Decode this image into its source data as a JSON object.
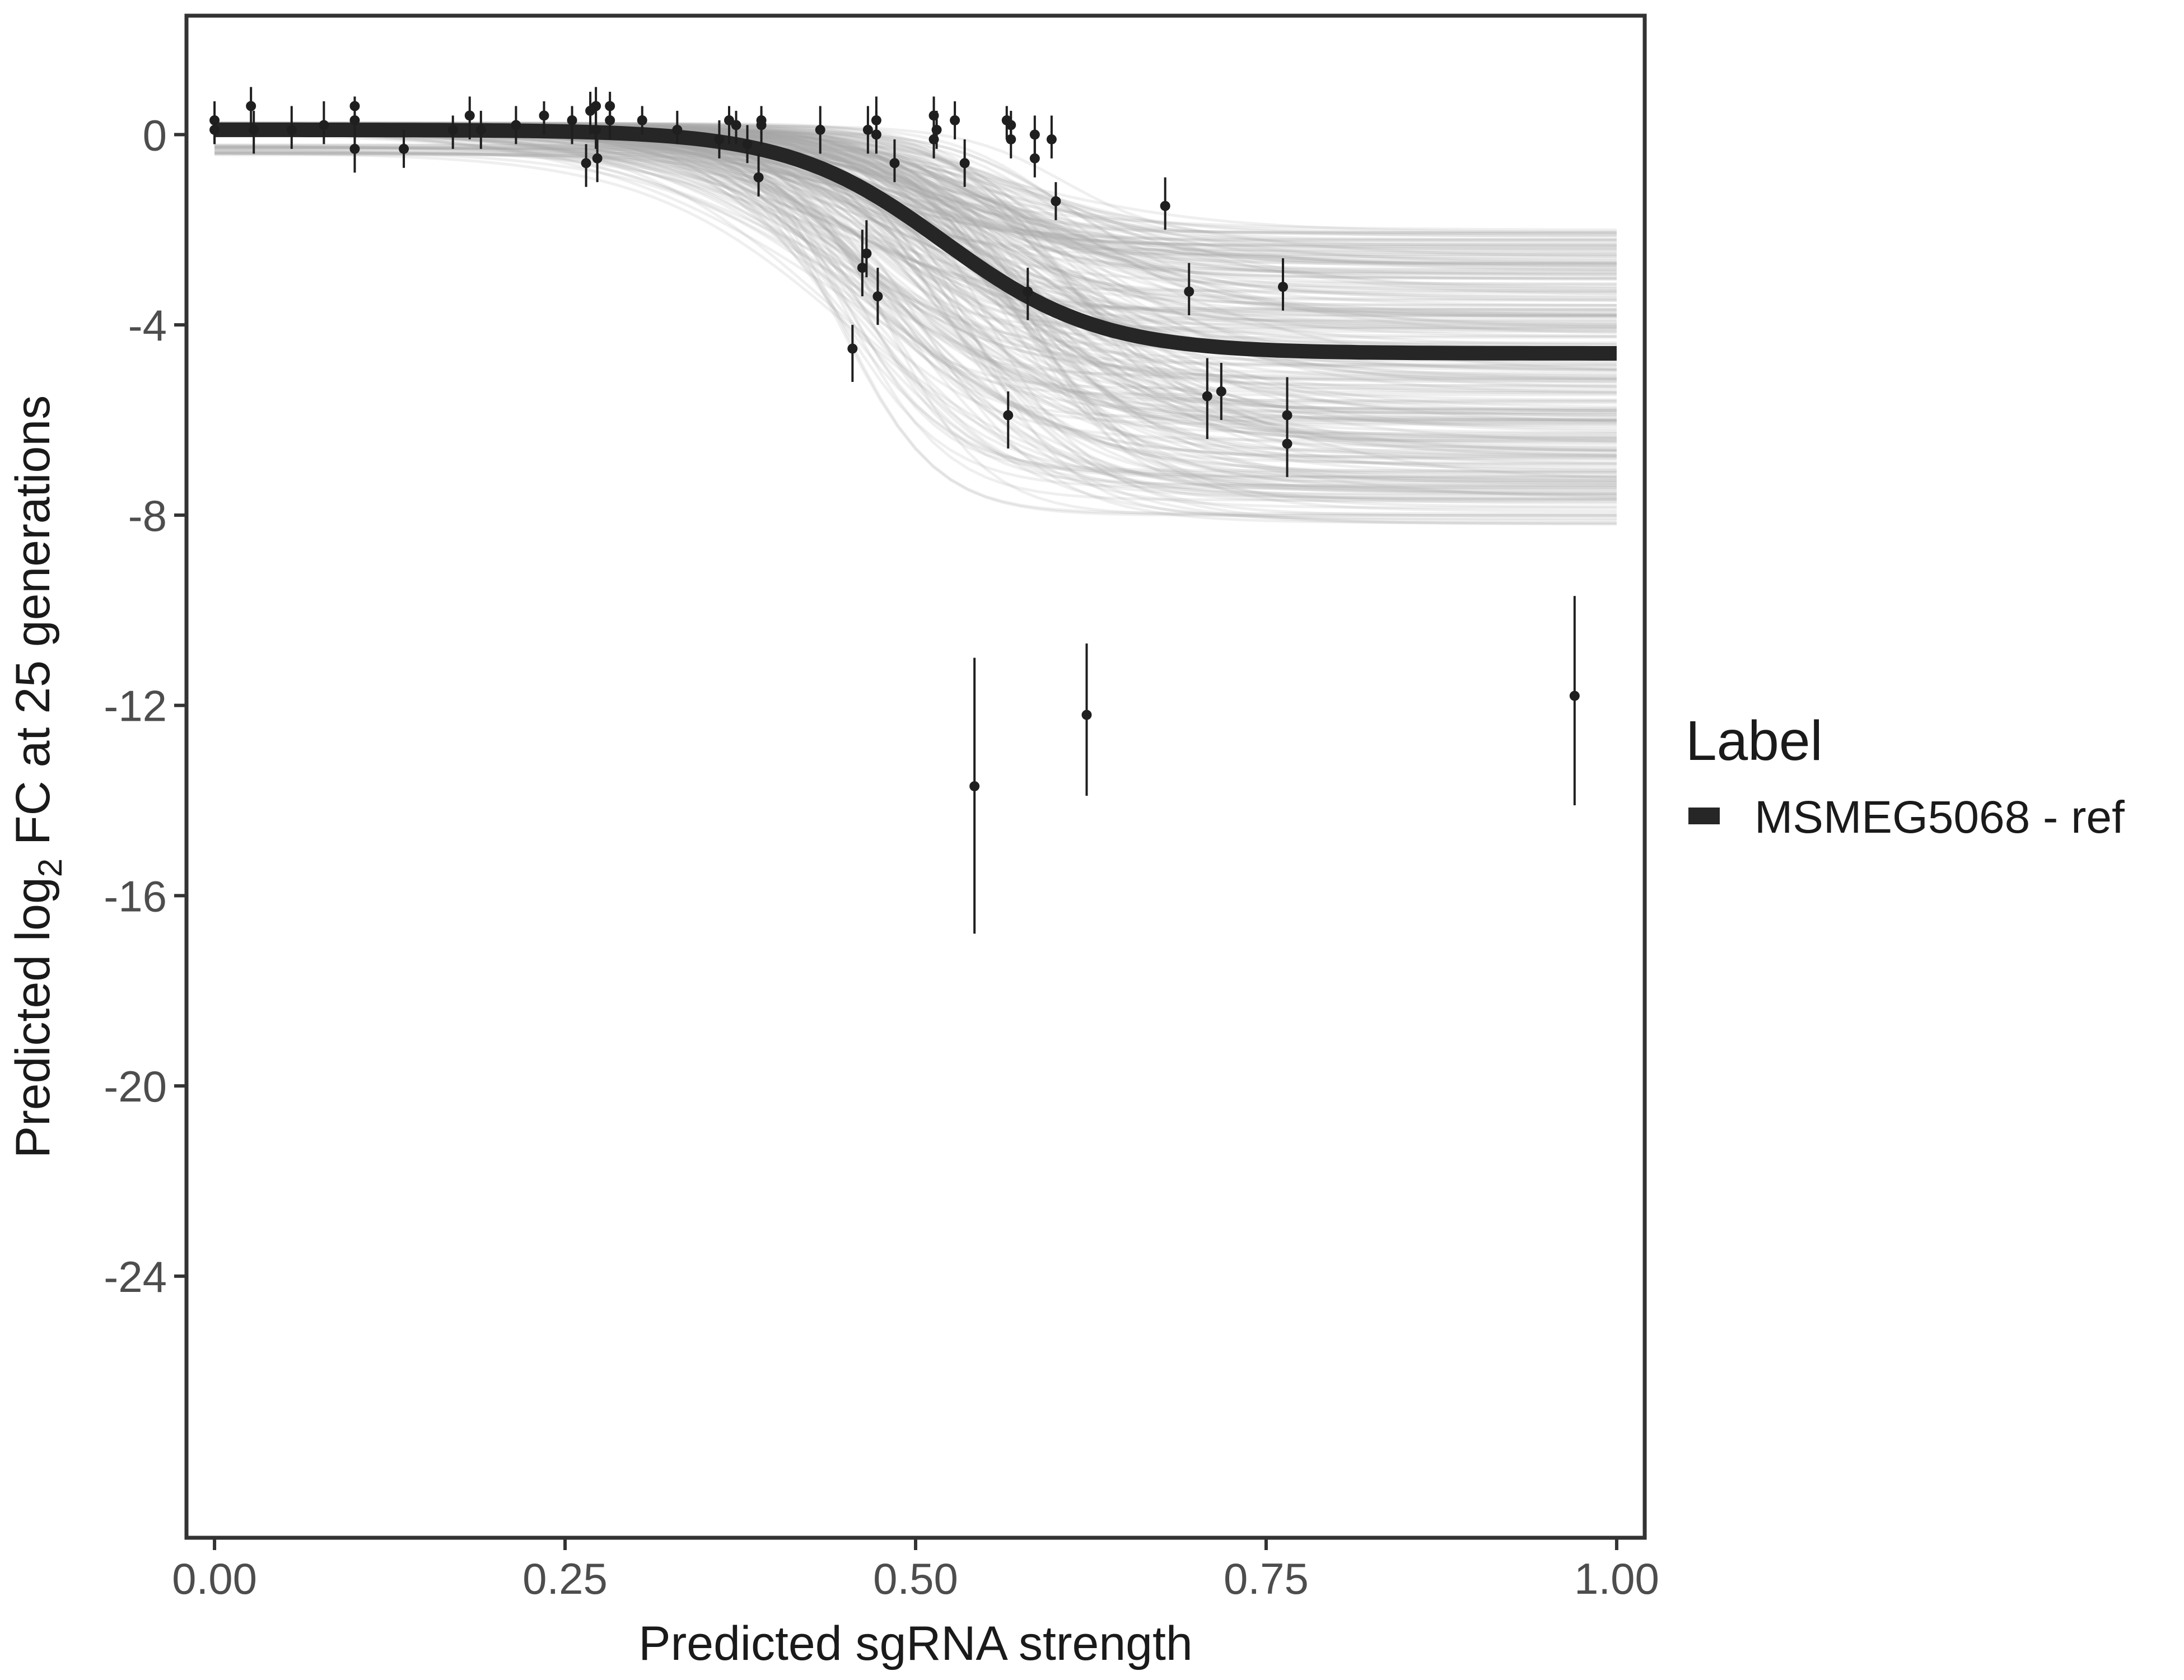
{
  "chart_data": {
    "type": "scatter",
    "xlabel": "Predicted sgRNA strength",
    "ylabel_parts": {
      "prefix": "Predicted  log",
      "subscript": "2",
      "suffix": " FC at 25 generations"
    },
    "xlim": [
      -0.02,
      1.02
    ],
    "ylim": [
      -29.5,
      2.5
    ],
    "x_ticks": [
      0.0,
      0.25,
      0.5,
      0.75,
      1.0
    ],
    "x_tick_labels": [
      "0.00",
      "0.25",
      "0.50",
      "0.75",
      "1.00"
    ],
    "y_ticks": [
      0,
      -4,
      -8,
      -12,
      -16,
      -20,
      -24
    ],
    "y_tick_labels": [
      "0",
      "-4",
      "-8",
      "-12",
      "-16",
      "-20",
      "-24"
    ],
    "legend": {
      "title": "Label",
      "entries": [
        {
          "label": "MSMEG5068 - ref",
          "color": "#262626"
        }
      ]
    },
    "fit_curve": {
      "model": "logistic",
      "low": -4.6,
      "high": 0.1,
      "midpoint": 0.52,
      "slope": 18
    },
    "posterior_band": {
      "color": "#a9a9a9",
      "low_range": [
        -8.2,
        -2.0
      ],
      "midpoint_range": [
        0.44,
        0.62
      ]
    },
    "series": [
      {
        "name": "MSMEG5068 - ref",
        "points": [
          {
            "x": 0.0,
            "y": 0.3,
            "lo": -0.2,
            "hi": 0.7
          },
          {
            "x": 0.0,
            "y": 0.1,
            "lo": -0.2,
            "hi": 0.4
          },
          {
            "x": 0.026,
            "y": 0.6,
            "lo": 0.1,
            "hi": 1.0
          },
          {
            "x": 0.028,
            "y": 0.1,
            "lo": -0.4,
            "hi": 0.5
          },
          {
            "x": 0.055,
            "y": 0.1,
            "lo": -0.3,
            "hi": 0.6
          },
          {
            "x": 0.078,
            "y": 0.2,
            "lo": -0.2,
            "hi": 0.7
          },
          {
            "x": 0.1,
            "y": -0.3,
            "lo": -0.8,
            "hi": 0.2
          },
          {
            "x": 0.1,
            "y": 0.6,
            "lo": 0.2,
            "hi": 0.8
          },
          {
            "x": 0.1,
            "y": 0.3,
            "lo": -0.1,
            "hi": 0.6
          },
          {
            "x": 0.135,
            "y": -0.3,
            "lo": -0.7,
            "hi": 0.1
          },
          {
            "x": 0.17,
            "y": 0.1,
            "lo": -0.3,
            "hi": 0.4
          },
          {
            "x": 0.182,
            "y": 0.4,
            "lo": -0.1,
            "hi": 0.8
          },
          {
            "x": 0.19,
            "y": 0.1,
            "lo": -0.3,
            "hi": 0.5
          },
          {
            "x": 0.215,
            "y": 0.2,
            "lo": -0.2,
            "hi": 0.6
          },
          {
            "x": 0.235,
            "y": 0.4,
            "lo": 0.0,
            "hi": 0.7
          },
          {
            "x": 0.255,
            "y": 0.3,
            "lo": -0.2,
            "hi": 0.6
          },
          {
            "x": 0.265,
            "y": -0.6,
            "lo": -1.1,
            "hi": -0.2
          },
          {
            "x": 0.268,
            "y": 0.5,
            "lo": 0.0,
            "hi": 0.9
          },
          {
            "x": 0.272,
            "y": 0.6,
            "lo": 0.2,
            "hi": 1.0
          },
          {
            "x": 0.272,
            "y": 0.1,
            "lo": -0.3,
            "hi": 0.5
          },
          {
            "x": 0.273,
            "y": -0.5,
            "lo": -1.0,
            "hi": -0.1
          },
          {
            "x": 0.282,
            "y": 0.6,
            "lo": 0.3,
            "hi": 0.9
          },
          {
            "x": 0.282,
            "y": 0.3,
            "lo": -0.1,
            "hi": 0.6
          },
          {
            "x": 0.305,
            "y": 0.3,
            "lo": 0.0,
            "hi": 0.6
          },
          {
            "x": 0.33,
            "y": 0.1,
            "lo": -0.2,
            "hi": 0.5
          },
          {
            "x": 0.36,
            "y": -0.1,
            "lo": -0.5,
            "hi": 0.3
          },
          {
            "x": 0.367,
            "y": 0.3,
            "lo": -0.2,
            "hi": 0.6
          },
          {
            "x": 0.372,
            "y": 0.2,
            "lo": -0.2,
            "hi": 0.5
          },
          {
            "x": 0.38,
            "y": -0.2,
            "lo": -0.6,
            "hi": 0.2
          },
          {
            "x": 0.388,
            "y": -0.9,
            "lo": -1.3,
            "hi": -0.4
          },
          {
            "x": 0.39,
            "y": 0.3,
            "lo": 0.0,
            "hi": 0.6
          },
          {
            "x": 0.39,
            "y": 0.2,
            "lo": -0.2,
            "hi": 0.5
          },
          {
            "x": 0.432,
            "y": 0.1,
            "lo": -0.4,
            "hi": 0.6
          },
          {
            "x": 0.455,
            "y": -4.5,
            "lo": -5.2,
            "hi": -4.0
          },
          {
            "x": 0.462,
            "y": -2.8,
            "lo": -3.4,
            "hi": -2.0
          },
          {
            "x": 0.465,
            "y": -2.5,
            "lo": -3.0,
            "hi": -1.8
          },
          {
            "x": 0.466,
            "y": 0.1,
            "lo": -0.4,
            "hi": 0.6
          },
          {
            "x": 0.472,
            "y": 0.3,
            "lo": -0.1,
            "hi": 0.8
          },
          {
            "x": 0.472,
            "y": 0.0,
            "lo": -0.4,
            "hi": 0.5
          },
          {
            "x": 0.473,
            "y": -3.4,
            "lo": -4.0,
            "hi": -2.8
          },
          {
            "x": 0.485,
            "y": -0.6,
            "lo": -1.0,
            "hi": -0.1
          },
          {
            "x": 0.513,
            "y": 0.4,
            "lo": 0.0,
            "hi": 0.8
          },
          {
            "x": 0.513,
            "y": -0.1,
            "lo": -0.5,
            "hi": 0.4
          },
          {
            "x": 0.515,
            "y": 0.1,
            "lo": -0.3,
            "hi": 0.5
          },
          {
            "x": 0.528,
            "y": 0.3,
            "lo": -0.1,
            "hi": 0.7
          },
          {
            "x": 0.535,
            "y": -0.6,
            "lo": -1.1,
            "hi": -0.1
          },
          {
            "x": 0.542,
            "y": -13.7,
            "lo": -16.8,
            "hi": -11.0
          },
          {
            "x": 0.565,
            "y": 0.3,
            "lo": -0.1,
            "hi": 0.6
          },
          {
            "x": 0.566,
            "y": -5.9,
            "lo": -6.6,
            "hi": -5.4
          },
          {
            "x": 0.568,
            "y": -0.1,
            "lo": -0.5,
            "hi": 0.3
          },
          {
            "x": 0.568,
            "y": 0.2,
            "lo": -0.2,
            "hi": 0.5
          },
          {
            "x": 0.58,
            "y": -3.3,
            "lo": -3.9,
            "hi": -2.8
          },
          {
            "x": 0.585,
            "y": -0.5,
            "lo": -0.9,
            "hi": -0.1
          },
          {
            "x": 0.585,
            "y": 0.0,
            "lo": -0.4,
            "hi": 0.4
          },
          {
            "x": 0.597,
            "y": -0.1,
            "lo": -0.5,
            "hi": 0.4
          },
          {
            "x": 0.6,
            "y": -1.4,
            "lo": -1.8,
            "hi": -1.0
          },
          {
            "x": 0.622,
            "y": -12.2,
            "lo": -13.9,
            "hi": -10.7
          },
          {
            "x": 0.678,
            "y": -1.5,
            "lo": -2.0,
            "hi": -0.9
          },
          {
            "x": 0.695,
            "y": -3.3,
            "lo": -3.8,
            "hi": -2.7
          },
          {
            "x": 0.708,
            "y": -5.5,
            "lo": -6.4,
            "hi": -4.7
          },
          {
            "x": 0.718,
            "y": -5.4,
            "lo": -6.0,
            "hi": -4.8
          },
          {
            "x": 0.762,
            "y": -3.2,
            "lo": -3.7,
            "hi": -2.6
          },
          {
            "x": 0.765,
            "y": -6.5,
            "lo": -7.2,
            "hi": -5.9
          },
          {
            "x": 0.765,
            "y": -5.9,
            "lo": -6.5,
            "hi": -5.1
          },
          {
            "x": 0.97,
            "y": -11.8,
            "lo": -14.1,
            "hi": -9.7
          }
        ]
      }
    ]
  }
}
